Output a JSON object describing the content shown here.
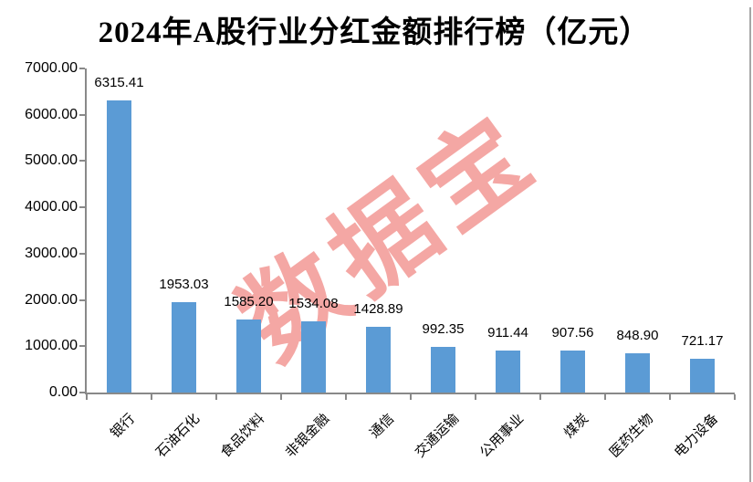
{
  "title": "2024年A股行业分红金额排行榜（亿元）",
  "watermark": "数据宝",
  "colors": {
    "bar": "#5B9BD5",
    "axis": "#898989",
    "watermark": "#F4A7A4",
    "text": "#000000"
  },
  "chart_data": {
    "type": "bar",
    "title": "2024年A股行业分红金额排行榜（亿元）",
    "unit": "亿元",
    "categories": [
      "银行",
      "石油石化",
      "食品饮料",
      "非银金融",
      "通信",
      "交通运输",
      "公用事业",
      "煤炭",
      "医药生物",
      "电力设备"
    ],
    "values": [
      6315.41,
      1953.03,
      1585.2,
      1534.08,
      1428.89,
      992.35,
      911.44,
      907.56,
      848.9,
      721.17
    ],
    "value_labels": [
      "6315.41",
      "1953.03",
      "1585.20",
      "1534.08",
      "1428.89",
      "992.35",
      "911.44",
      "907.56",
      "848.90",
      "721.17"
    ],
    "xlabel": "",
    "ylabel": "",
    "ylim": [
      0,
      7000
    ],
    "y_tick_step": 1000,
    "y_tick_labels": [
      "0.00",
      "1000.00",
      "2000.00",
      "3000.00",
      "4000.00",
      "5000.00",
      "6000.00",
      "7000.00"
    ],
    "grid": false,
    "legend": "none",
    "bar_label_position": "above",
    "category_label_rotation_deg": -45
  }
}
